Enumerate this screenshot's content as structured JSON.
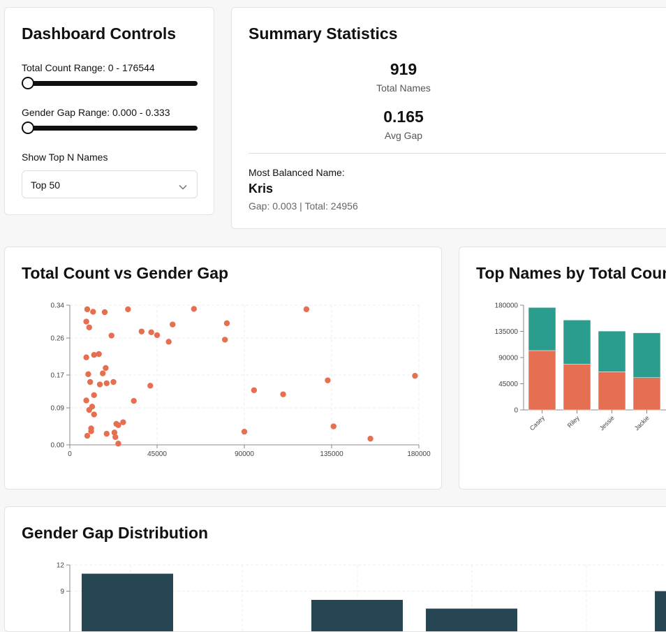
{
  "controls": {
    "title": "Dashboard Controls",
    "count_range_label": "Total Count Range: 0 - 176544",
    "gap_range_label": "Gender Gap Range: 0.000 - 0.333",
    "count_slider_value": 0,
    "gap_slider_value": 0,
    "topn_label": "Show Top N Names",
    "topn_selected": "Top 50"
  },
  "summary": {
    "title": "Summary Statistics",
    "total_names_value": "919",
    "total_names_label": "Total Names",
    "avg_gap_value": "0.165",
    "avg_gap_label": "Avg Gap",
    "most_balanced_label": "Most Balanced Name:",
    "most_balanced_name": "Kris",
    "gap_text": "Gap: 0.003",
    "separator": " | ",
    "total_text": "Total: 24956"
  },
  "scatter": {
    "title": "Total Count vs Gender Gap"
  },
  "bars": {
    "title": "Top Names by Total Count"
  },
  "hist": {
    "title": "Gender Gap Distribution"
  },
  "colors": {
    "orange": "#e76f51",
    "teal": "#2a9d8f",
    "navy": "#264653"
  },
  "chart_data": [
    {
      "type": "scatter",
      "title": "Total Count vs Gender Gap",
      "xlim": [
        0,
        180000
      ],
      "ylim": [
        0,
        0.34
      ],
      "xticks": [
        0,
        45000,
        90000,
        135000,
        180000
      ],
      "yticks": [
        "0.00",
        "0.09",
        "0.17",
        "0.26",
        "0.34"
      ],
      "grid": true,
      "color": "#e76f51",
      "points": [
        [
          9000,
          0.33
        ],
        [
          12000,
          0.324
        ],
        [
          18000,
          0.323
        ],
        [
          30000,
          0.33
        ],
        [
          64000,
          0.331
        ],
        [
          122000,
          0.33
        ],
        [
          8500,
          0.3
        ],
        [
          10000,
          0.286
        ],
        [
          81000,
          0.296
        ],
        [
          53000,
          0.293
        ],
        [
          37000,
          0.276
        ],
        [
          42000,
          0.274
        ],
        [
          45000,
          0.267
        ],
        [
          21500,
          0.266
        ],
        [
          80000,
          0.256
        ],
        [
          51000,
          0.251
        ],
        [
          15000,
          0.221
        ],
        [
          12500,
          0.219
        ],
        [
          8500,
          0.213
        ],
        [
          18500,
          0.187
        ],
        [
          17000,
          0.174
        ],
        [
          9500,
          0.172
        ],
        [
          178000,
          0.168
        ],
        [
          133000,
          0.157
        ],
        [
          10500,
          0.153
        ],
        [
          22500,
          0.153
        ],
        [
          19000,
          0.15
        ],
        [
          15500,
          0.147
        ],
        [
          41500,
          0.144
        ],
        [
          95000,
          0.133
        ],
        [
          110000,
          0.123
        ],
        [
          12500,
          0.121
        ],
        [
          8500,
          0.108
        ],
        [
          33000,
          0.107
        ],
        [
          11500,
          0.093
        ],
        [
          10000,
          0.085
        ],
        [
          12500,
          0.074
        ],
        [
          27500,
          0.055
        ],
        [
          24000,
          0.051
        ],
        [
          25000,
          0.048
        ],
        [
          11000,
          0.04
        ],
        [
          136000,
          0.045
        ],
        [
          11000,
          0.033
        ],
        [
          90000,
          0.032
        ],
        [
          19000,
          0.027
        ],
        [
          23000,
          0.03
        ],
        [
          23500,
          0.019
        ],
        [
          9000,
          0.022
        ],
        [
          155000,
          0.015
        ],
        [
          25000,
          0.003
        ]
      ]
    },
    {
      "type": "bar",
      "title": "Top Names by Total Count",
      "categories": [
        "Casey",
        "Riley",
        "Jessie",
        "Jackie"
      ],
      "series": [
        {
          "color": "#e76f51",
          "values": [
            102000,
            78500,
            65500,
            55500
          ]
        },
        {
          "color": "#2a9d8f",
          "values": [
            74000,
            76000,
            70000,
            77000
          ]
        }
      ],
      "ylim": [
        0,
        180000
      ],
      "yticks": [
        "0",
        "45000",
        "90000",
        "135000",
        "180000"
      ]
    },
    {
      "type": "bar",
      "title": "Gender Gap Distribution",
      "ylim": [
        0,
        12
      ],
      "yticks": [
        "9",
        "12"
      ],
      "values": [
        11,
        0,
        8,
        7,
        0,
        9
      ],
      "color": "#264653"
    }
  ]
}
